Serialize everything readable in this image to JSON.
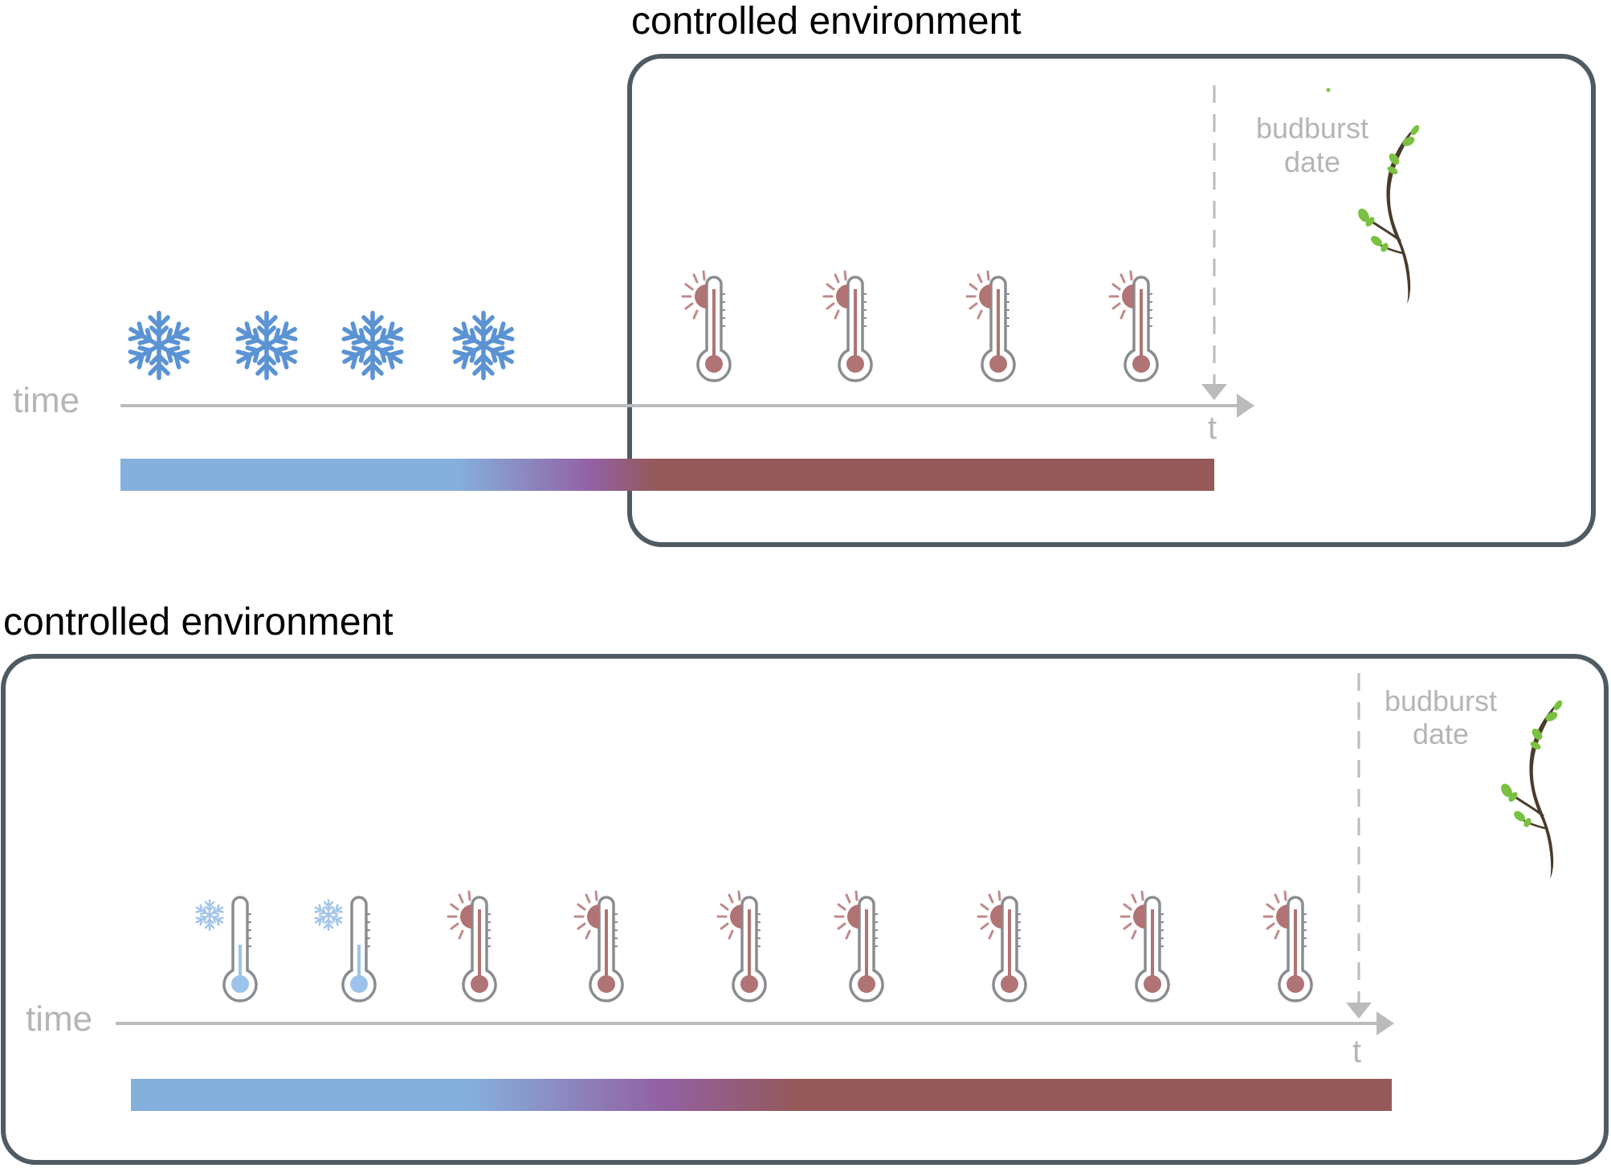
{
  "colors": {
    "frame": "#4f5b62",
    "axis": "#b9bbbd",
    "cold": "#85afdc",
    "transition": "#9261a3",
    "warm": "#955959",
    "snowflake": "#5b93d4",
    "snowflake_light": "#a3c5ea",
    "thermo_warm": "#b07474",
    "thermo_cold": "#9cc4ea",
    "sun": "#c08a8a",
    "stem": "#4a3c2c",
    "leaf": "#7ac142"
  },
  "panels": [
    {
      "title": "controlled environment",
      "axis_label": "time",
      "t_label": "t",
      "budburst_label_line1": "budburst",
      "budburst_label_line2": "date",
      "conditions_outside": [
        "cold",
        "cold",
        "cold",
        "cold"
      ],
      "conditions_inside": [
        "warm",
        "warm",
        "warm",
        "warm"
      ]
    },
    {
      "title": "controlled environment",
      "axis_label": "time",
      "t_label": "t",
      "budburst_label_line1": "budburst",
      "budburst_label_line2": "date",
      "conditions_inside": [
        "cold",
        "cold",
        "warm",
        "warm",
        "warm",
        "warm",
        "warm",
        "warm",
        "warm"
      ]
    }
  ]
}
